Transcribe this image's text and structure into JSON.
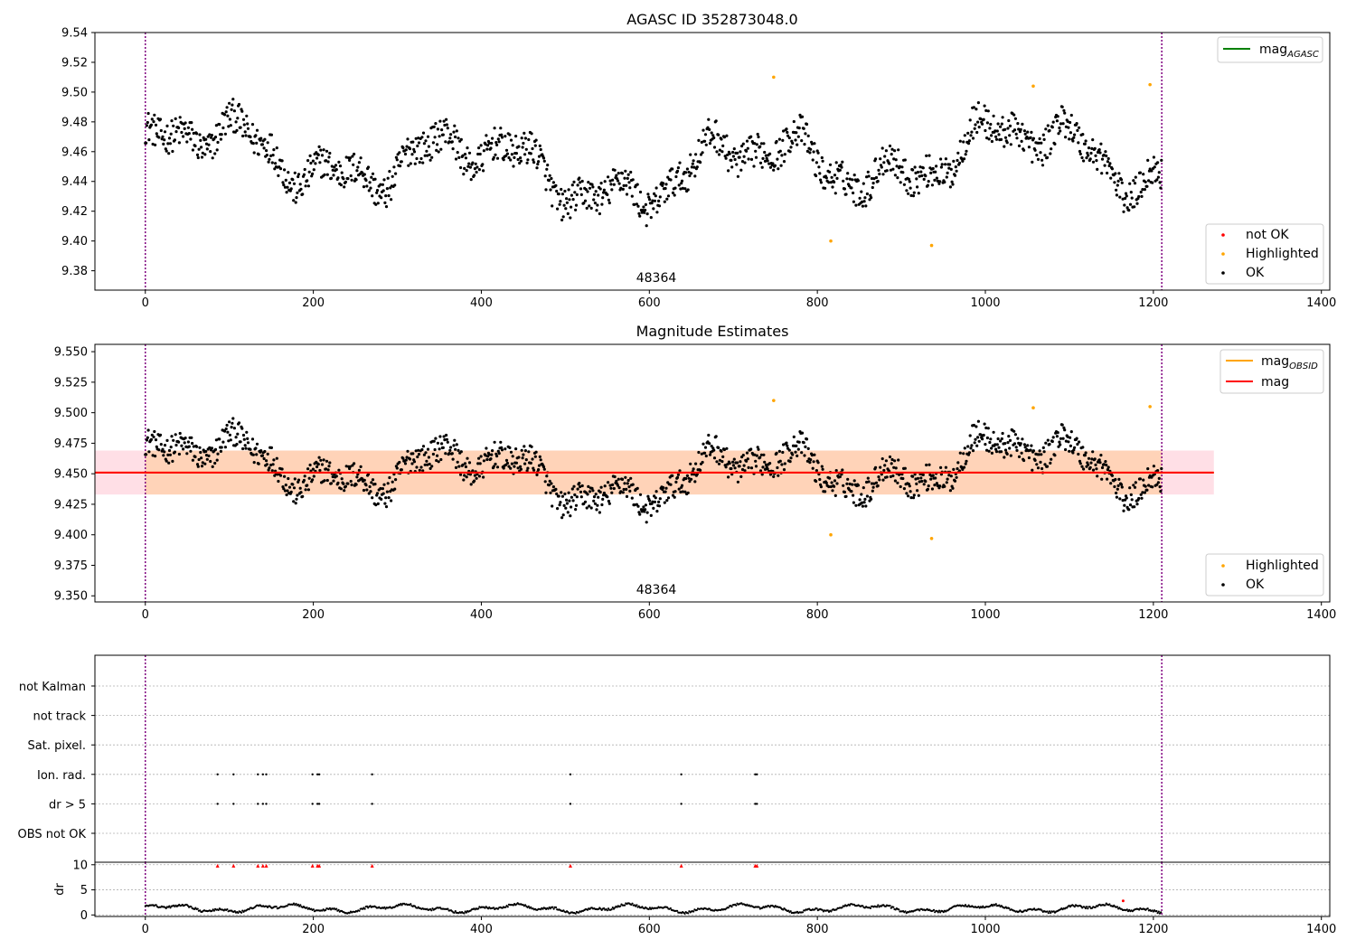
{
  "chart_data": [
    {
      "type": "scatter",
      "title": "AGASC ID 352873048.0",
      "xlim": [
        -60,
        1410
      ],
      "ylim": [
        9.367,
        9.54
      ],
      "xticks": [
        "0",
        "200",
        "400",
        "600",
        "800",
        "1000",
        "1200",
        "1400"
      ],
      "xtick_values": [
        0,
        200,
        400,
        600,
        800,
        1000,
        1200,
        1400
      ],
      "yticks": [
        "9.38",
        "9.40",
        "9.42",
        "9.44",
        "9.46",
        "9.48",
        "9.50",
        "9.52",
        "9.54"
      ],
      "ytick_values": [
        9.38,
        9.4,
        9.42,
        9.44,
        9.46,
        9.48,
        9.5,
        9.52,
        9.54
      ],
      "obsid_label": "48364",
      "obsid_label_x": 607,
      "vlines": [
        0,
        1210
      ],
      "legend_lines": [
        {
          "label": "mag",
          "subscript": "AGASC",
          "color": "#008000"
        }
      ],
      "legend_markers": [
        {
          "label": "not OK",
          "color": "#ff0000"
        },
        {
          "label": "Highlighted",
          "color": "#ffa500"
        },
        {
          "label": "OK",
          "color": "#000000"
        }
      ],
      "highlighted_points": [
        [
          748,
          9.51
        ],
        [
          816,
          9.4
        ],
        [
          936,
          9.397
        ],
        [
          1057,
          9.504
        ],
        [
          1196,
          9.505
        ]
      ]
    },
    {
      "type": "scatter",
      "title": "Magnitude Estimates",
      "xlim": [
        -60,
        1410
      ],
      "ylim": [
        9.345,
        9.556
      ],
      "xticks": [
        "0",
        "200",
        "400",
        "600",
        "800",
        "1000",
        "1200",
        "1400"
      ],
      "xtick_values": [
        0,
        200,
        400,
        600,
        800,
        1000,
        1200,
        1400
      ],
      "yticks": [
        "9.350",
        "9.375",
        "9.400",
        "9.425",
        "9.450",
        "9.475",
        "9.500",
        "9.525",
        "9.550"
      ],
      "ytick_values": [
        9.35,
        9.375,
        9.4,
        9.425,
        9.45,
        9.475,
        9.5,
        9.525,
        9.55
      ],
      "obsid_label": "48364",
      "obsid_label_x": 607,
      "vlines": [
        0,
        1210
      ],
      "mag": 9.451,
      "mag_band": [
        9.433,
        9.469
      ],
      "band_x": [
        -60,
        1272
      ],
      "legend_lines": [
        {
          "label": "mag",
          "subscript": "OBSID",
          "color": "#ffa500"
        },
        {
          "label": "mag",
          "subscript": "",
          "color": "#ff0000"
        }
      ],
      "legend_markers": [
        {
          "label": "Highlighted",
          "color": "#ffa500"
        },
        {
          "label": "OK",
          "color": "#000000"
        }
      ],
      "highlighted_points": [
        [
          748,
          9.51
        ],
        [
          816,
          9.4
        ],
        [
          936,
          9.397
        ],
        [
          1057,
          9.504
        ],
        [
          1196,
          9.505
        ]
      ]
    },
    {
      "type": "scatter",
      "title": "",
      "xlim": [
        -60,
        1410
      ],
      "categories": [
        "not Kalman",
        "not track",
        "Sat. pixel.",
        "Ion. rad.",
        "dr > 5",
        "OBS not OK"
      ],
      "flag_times": {
        "Ion. rad.": [
          86,
          105,
          134,
          140,
          144,
          199,
          205,
          207,
          270,
          506,
          638,
          726,
          728
        ],
        "dr > 5": [
          86,
          105,
          134,
          140,
          144,
          199,
          205,
          207,
          270,
          506,
          638,
          726,
          728
        ]
      },
      "vlines": [
        0,
        1210
      ]
    },
    {
      "type": "scatter",
      "title": "",
      "ylabel": "dr",
      "xlim": [
        -60,
        1410
      ],
      "ylim": [
        -0.3,
        10.5
      ],
      "xticks": [
        "0",
        "200",
        "400",
        "600",
        "800",
        "1000",
        "1200",
        "1400"
      ],
      "xtick_values": [
        0,
        200,
        400,
        600,
        800,
        1000,
        1200,
        1400
      ],
      "yticks": [
        "0",
        "5",
        "10"
      ],
      "ytick_values": [
        0,
        5,
        10
      ],
      "clipped_points_at_10": [
        86,
        105,
        134,
        140,
        144,
        199,
        205,
        207,
        270,
        506,
        638,
        726,
        728
      ],
      "red_points": [
        [
          1164,
          2.8
        ]
      ],
      "vlines": [
        0,
        1210
      ]
    }
  ]
}
